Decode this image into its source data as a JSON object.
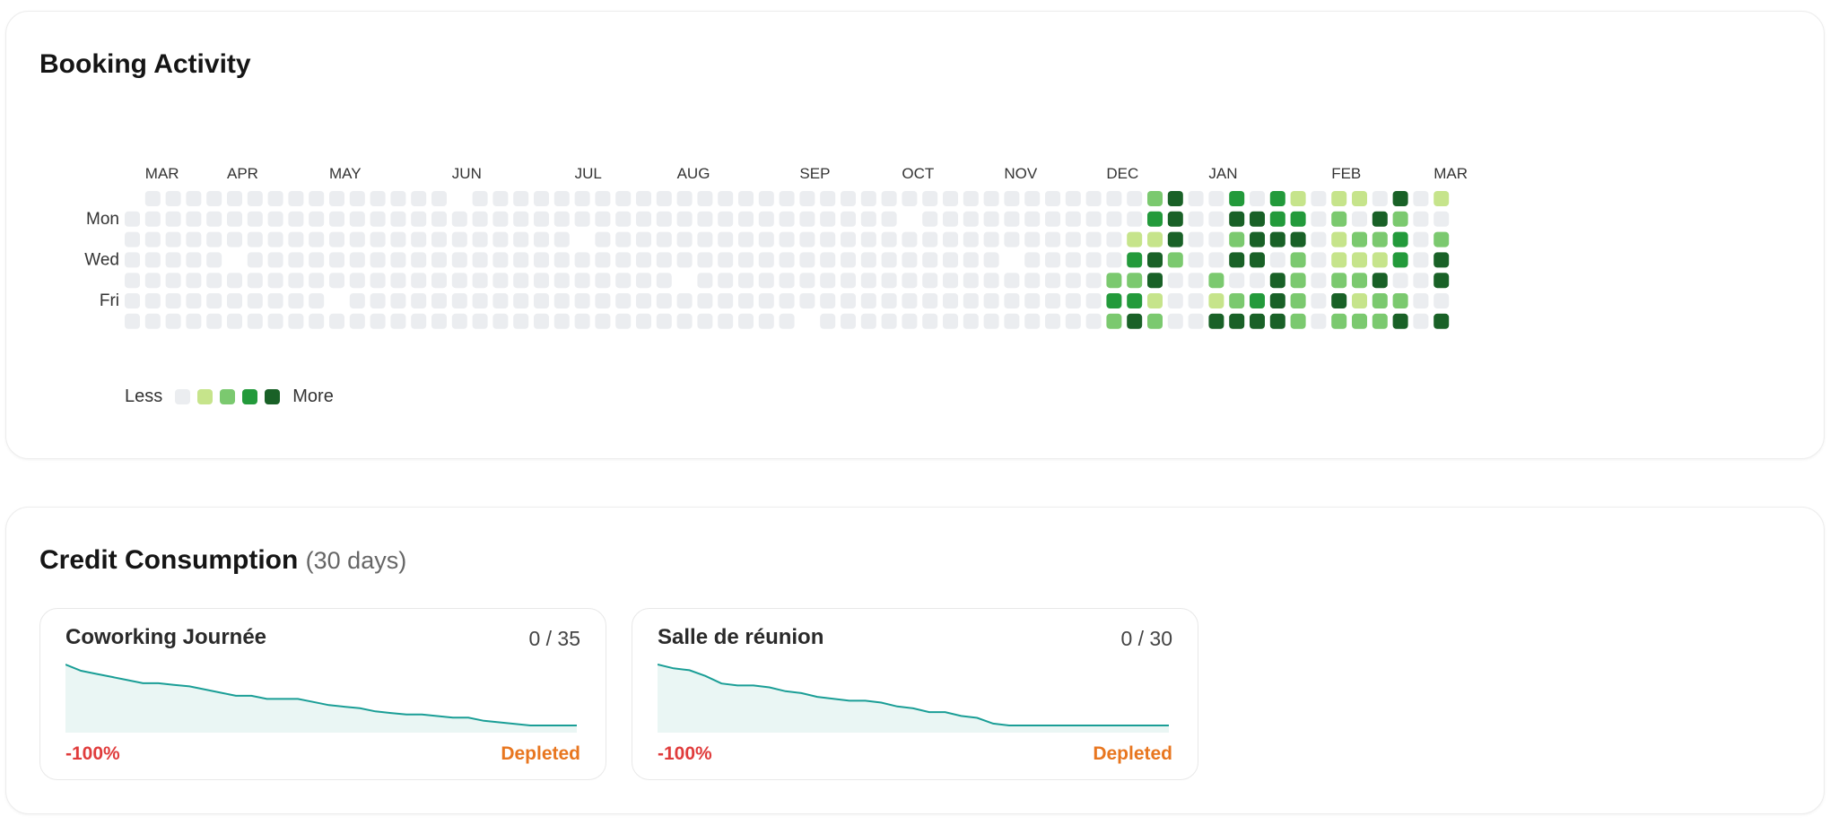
{
  "activity": {
    "title": "Booking Activity",
    "months": [
      "MAR",
      "APR",
      "MAY",
      "JUN",
      "JUL",
      "AUG",
      "SEP",
      "OCT",
      "NOV",
      "DEC",
      "JAN",
      "FEB",
      "MAR"
    ],
    "month_start_weeks": [
      1,
      5,
      10,
      16,
      22,
      27,
      33,
      38,
      43,
      48,
      53,
      59,
      64
    ],
    "day_labels": {
      "mon": "Mon",
      "wed": "Wed",
      "fri": "Fri"
    },
    "week_count": 65,
    "grid_start_weekday": 1,
    "grid_end_week": 64,
    "grid_end_day": 5,
    "month_gap_days": 7,
    "colors": {
      "empty": "#ebedf0",
      "level1": "#c6e48b",
      "level2": "#7bc96f",
      "level3": "#239a3b",
      "level4": "#196127"
    },
    "active_weeks": [
      {
        "week": 48,
        "levels": [
          0,
          0,
          0,
          0,
          2,
          3,
          2
        ]
      },
      {
        "week": 49,
        "levels": [
          0,
          0,
          1,
          3,
          2,
          3,
          4
        ]
      },
      {
        "week": 50,
        "levels": [
          2,
          3,
          1,
          4,
          4,
          1,
          2
        ]
      },
      {
        "week": 51,
        "levels": [
          4,
          4,
          4,
          2,
          0,
          0,
          0
        ]
      },
      {
        "week": 53,
        "levels": [
          0,
          0,
          0,
          0,
          2,
          1,
          4
        ]
      },
      {
        "week": 54,
        "levels": [
          3,
          4,
          2,
          4,
          0,
          2,
          4
        ]
      },
      {
        "week": 55,
        "levels": [
          0,
          4,
          4,
          4,
          0,
          3,
          4
        ]
      },
      {
        "week": 56,
        "levels": [
          3,
          3,
          4,
          0,
          4,
          4,
          4
        ]
      },
      {
        "week": 57,
        "levels": [
          1,
          3,
          4,
          2,
          2,
          2,
          2
        ]
      },
      {
        "week": 59,
        "levels": [
          1,
          2,
          1,
          1,
          2,
          4,
          2
        ]
      },
      {
        "week": 60,
        "levels": [
          1,
          0,
          2,
          1,
          2,
          1,
          2
        ]
      },
      {
        "week": 61,
        "levels": [
          0,
          4,
          2,
          1,
          4,
          2,
          2
        ]
      },
      {
        "week": 62,
        "levels": [
          4,
          2,
          3,
          3,
          0,
          2,
          4
        ]
      },
      {
        "week": 64,
        "levels": [
          1,
          0,
          2,
          4,
          4,
          0,
          4
        ]
      },
      {
        "week": 65,
        "levels": [
          2,
          2,
          2,
          0,
          -1,
          -1,
          -1
        ]
      }
    ],
    "legend": {
      "less": "Less",
      "more": "More"
    }
  },
  "credits": {
    "title": "Credit Consumption",
    "period": "(30 days)",
    "items": [
      {
        "name": "Coworking Journée",
        "count": "0 / 35",
        "change": "-100%",
        "status": "Depleted",
        "trend": [
          35,
          33,
          32,
          31,
          30,
          29,
          29,
          28.5,
          28,
          27,
          26,
          25,
          25,
          24,
          24,
          24,
          23,
          22,
          21.5,
          21,
          20,
          19.5,
          19,
          19,
          18.5,
          18,
          18,
          17,
          16.5,
          16,
          15.5,
          15.5,
          15.5,
          15.5
        ]
      },
      {
        "name": "Salle de réunion",
        "count": "0 / 30",
        "change": "-100%",
        "status": "Depleted",
        "trend": [
          30,
          29,
          28.5,
          27,
          25,
          24.5,
          24.5,
          24,
          23,
          22.5,
          21.5,
          21,
          20.5,
          20.5,
          20,
          19,
          18.5,
          17.5,
          17.5,
          16.5,
          16,
          14.5,
          14,
          14,
          14,
          14,
          14,
          14,
          14,
          14,
          14,
          14,
          14
        ]
      }
    ],
    "colors": {
      "line": "#1a9e96",
      "fill": "#eaf6f4"
    }
  }
}
